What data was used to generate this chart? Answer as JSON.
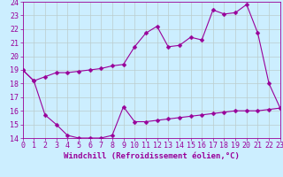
{
  "xlabel": "Windchill (Refroidissement éolien,°C)",
  "line1_x": [
    0,
    1,
    2,
    3,
    4,
    5,
    6,
    7,
    8,
    9,
    10,
    11,
    12,
    13,
    14,
    15,
    16,
    17,
    18,
    19,
    20,
    21,
    22,
    23
  ],
  "line1_y": [
    19.0,
    18.2,
    15.7,
    15.0,
    14.2,
    14.0,
    14.0,
    14.0,
    14.2,
    16.3,
    15.2,
    15.2,
    15.3,
    15.4,
    15.5,
    15.6,
    15.7,
    15.8,
    15.9,
    16.0,
    16.0,
    16.0,
    16.1,
    16.2
  ],
  "line2_x": [
    0,
    1,
    2,
    3,
    4,
    5,
    6,
    7,
    8,
    9,
    10,
    11,
    12,
    13,
    14,
    15,
    16,
    17,
    18,
    19,
    20,
    21,
    22,
    23
  ],
  "line2_y": [
    19.0,
    18.2,
    18.5,
    18.8,
    18.8,
    18.9,
    19.0,
    19.1,
    19.3,
    19.4,
    20.7,
    21.7,
    22.2,
    20.7,
    20.8,
    21.4,
    21.2,
    23.4,
    23.1,
    23.2,
    23.8,
    21.7,
    18.0,
    16.2
  ],
  "line_color": "#990099",
  "bg_color": "#cceeff",
  "grid_color": "#bbcccc",
  "xlim": [
    0,
    23
  ],
  "ylim": [
    14,
    24
  ],
  "yticks": [
    14,
    15,
    16,
    17,
    18,
    19,
    20,
    21,
    22,
    23,
    24
  ],
  "xticks": [
    0,
    1,
    2,
    3,
    4,
    5,
    6,
    7,
    8,
    9,
    10,
    11,
    12,
    13,
    14,
    15,
    16,
    17,
    18,
    19,
    20,
    21,
    22,
    23
  ],
  "markersize": 2.5,
  "linewidth": 0.8,
  "xlabel_fontsize": 6.5,
  "tick_fontsize": 6.0
}
